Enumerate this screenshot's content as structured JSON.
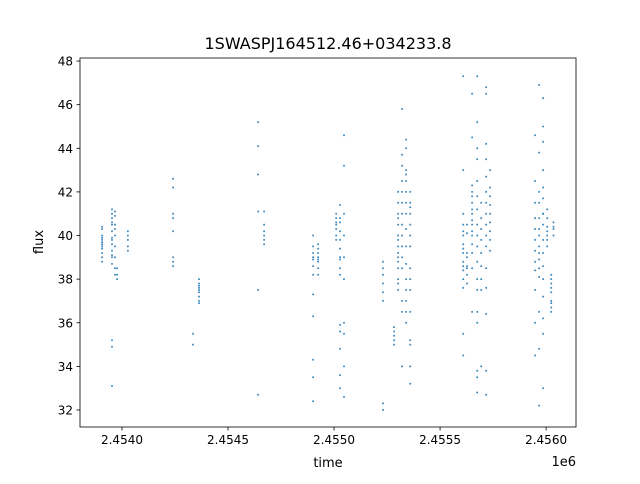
{
  "chart_data": {
    "type": "scatter",
    "title": "1SWASPJ164512.46+034233.8",
    "xlabel": "time",
    "ylabel": "flux",
    "x_offset_label": "1e6",
    "xlim": [
      2453802,
      2456141
    ],
    "ylim": [
      31.22,
      48.14
    ],
    "xticks": [
      2454000,
      2454500,
      2455000,
      2455500,
      2456000
    ],
    "xtick_labels": [
      "2.4540",
      "2.4545",
      "2.4550",
      "2.4555",
      "2.4560"
    ],
    "yticks": [
      32,
      34,
      36,
      38,
      40,
      42,
      44,
      46,
      48
    ],
    "ytick_labels": [
      "32",
      "34",
      "36",
      "38",
      "40",
      "42",
      "44",
      "46",
      "48"
    ],
    "grid": false,
    "color": "#1f77b4",
    "columns": [
      {
        "x": 2453906,
        "y": [
          40.3,
          40.0,
          39.8,
          39.6,
          39.4,
          39.2,
          39.0,
          39.9,
          40.4,
          39.7,
          39.5,
          38.8
        ]
      },
      {
        "x": 2453953,
        "y": [
          41.0,
          40.8,
          40.5,
          40.2,
          39.9,
          39.6,
          39.3,
          39.0,
          38.7,
          40.6,
          41.2,
          39.8,
          39.1,
          35.2,
          34.9,
          33.1
        ]
      },
      {
        "x": 2453967,
        "y": [
          40.9,
          40.5,
          40.0,
          39.5,
          39.0,
          38.5,
          38.2,
          41.1,
          40.3
        ]
      },
      {
        "x": 2453977,
        "y": [
          38.5,
          38.2,
          38.0
        ]
      },
      {
        "x": 2454028,
        "y": [
          40.2,
          40.0,
          39.8,
          39.5,
          39.3
        ]
      },
      {
        "x": 2454241,
        "y": [
          42.6,
          42.2,
          41.0,
          40.8,
          40.2,
          39.0,
          38.8,
          38.6
        ]
      },
      {
        "x": 2454335,
        "y": [
          35.5,
          35.0
        ]
      },
      {
        "x": 2454363,
        "y": [
          38.0,
          37.8,
          37.6,
          37.4,
          37.2,
          37.0,
          36.9,
          37.7,
          37.5
        ]
      },
      {
        "x": 2454642,
        "y": [
          45.2,
          44.1,
          42.8,
          41.1,
          37.5,
          32.7
        ]
      },
      {
        "x": 2454670,
        "y": [
          40.5,
          40.2,
          40.0,
          39.8,
          39.6,
          41.1
        ]
      },
      {
        "x": 2454901,
        "y": [
          40.0,
          39.5,
          39.0,
          38.6,
          38.2,
          37.3,
          36.3,
          34.3,
          33.5,
          32.4,
          38.9,
          39.2
        ]
      },
      {
        "x": 2454925,
        "y": [
          39.6,
          39.2,
          38.9,
          38.5,
          38.2,
          38.8,
          39.4,
          39.0
        ]
      },
      {
        "x": 2455010,
        "y": [
          40.8,
          40.6,
          40.3,
          40.0,
          39.8,
          41.0,
          40.5
        ]
      },
      {
        "x": 2455028,
        "y": [
          41.4,
          40.8,
          40.2,
          39.8,
          39.4,
          38.9,
          38.5,
          38.2,
          40.6,
          39.0,
          35.9,
          35.6,
          34.8,
          33.6,
          33.0
        ]
      },
      {
        "x": 2455047,
        "y": [
          44.6,
          43.2,
          41.0,
          40.0,
          39.0,
          38.0,
          36.0,
          32.6,
          35.5,
          34.0
        ]
      },
      {
        "x": 2455231,
        "y": [
          38.8,
          38.5,
          38.2,
          37.8,
          37.4,
          37.0,
          32.3,
          32.0
        ]
      },
      {
        "x": 2455283,
        "y": [
          35.8,
          35.4,
          35.0,
          35.6,
          35.2
        ]
      },
      {
        "x": 2455302,
        "y": [
          41.0,
          40.5,
          40.0,
          39.5,
          39.0,
          38.5,
          38.0,
          37.5,
          41.5,
          42.0,
          40.8,
          39.8,
          39.2,
          38.8,
          37.8
        ]
      },
      {
        "x": 2455321,
        "y": [
          42.5,
          42.0,
          41.5,
          41.0,
          40.5,
          40.0,
          39.5,
          39.0,
          38.5,
          37.0,
          36.5,
          43.2,
          45.8,
          43.7,
          34.0
        ]
      },
      {
        "x": 2455340,
        "y": [
          43.0,
          42.5,
          42.0,
          41.5,
          41.0,
          40.3,
          39.5,
          38.7,
          38.0,
          37.5,
          37.0,
          36.5,
          36.0,
          42.8,
          44.0,
          44.4
        ]
      },
      {
        "x": 2455359,
        "y": [
          42.0,
          41.5,
          41.0,
          40.5,
          40.0,
          39.5,
          38.5,
          38.0,
          37.5,
          36.5,
          35.2,
          34.0,
          33.2,
          35.0,
          41.3
        ]
      },
      {
        "x": 2455609,
        "y": [
          40.5,
          40.2,
          40.0,
          39.6,
          39.2,
          38.8,
          38.4,
          38.0,
          37.6,
          41.0,
          38.6,
          39.4,
          47.3,
          43.0,
          35.5,
          34.5
        ]
      },
      {
        "x": 2455627,
        "y": [
          39.0,
          38.5,
          38.2,
          37.8,
          38.6,
          39.2,
          40.1,
          40.5
        ]
      },
      {
        "x": 2455651,
        "y": [
          41.5,
          41.0,
          40.5,
          40.0,
          39.6,
          39.2,
          38.5,
          42.0,
          41.8,
          40.7,
          41.2,
          40.2,
          42.3,
          46.5,
          44.5,
          36.5
        ]
      },
      {
        "x": 2455675,
        "y": [
          43.5,
          45.2,
          44.0,
          42.5,
          41.8,
          41.2,
          40.5,
          40.0,
          39.5,
          38.8,
          38.0,
          37.5,
          36.5,
          33.8,
          33.5,
          32.8,
          36.0,
          47.3
        ]
      },
      {
        "x": 2455694,
        "y": [
          40.3,
          39.8,
          39.2,
          38.6,
          38.0,
          37.5,
          40.8,
          41.5,
          34.0
        ]
      },
      {
        "x": 2455717,
        "y": [
          43.5,
          42.7,
          42.0,
          41.5,
          41.0,
          40.5,
          40.0,
          39.5,
          38.5,
          37.6,
          36.4,
          32.7,
          33.8,
          46.8,
          46.5,
          44.2
        ]
      },
      {
        "x": 2455736,
        "y": [
          42.2,
          41.8,
          41.4,
          41.0,
          40.6,
          40.2,
          39.8,
          39.3,
          43.0
        ]
      },
      {
        "x": 2455948,
        "y": [
          41.5,
          40.8,
          40.3,
          39.8,
          39.3,
          38.8,
          38.4,
          37.5,
          36.0,
          34.5,
          44.6,
          42.5
        ]
      },
      {
        "x": 2455967,
        "y": [
          42.0,
          41.5,
          40.8,
          40.3,
          40.0,
          39.5,
          38.9,
          38.5,
          38.1,
          39.2,
          36.5,
          34.8,
          32.2,
          46.9,
          43.8
        ]
      },
      {
        "x": 2455986,
        "y": [
          43.0,
          42.2,
          41.7,
          41.0,
          40.5,
          39.8,
          39.2,
          38.6,
          38.0,
          37.2,
          36.2,
          35.5,
          33.0,
          46.3,
          45.0,
          44.3,
          41.0
        ]
      },
      {
        "x": 2456005,
        "y": [
          40.8,
          40.4,
          40.0,
          39.8,
          39.5,
          41.2,
          40.2
        ]
      },
      {
        "x": 2456024,
        "y": [
          38.2,
          37.8,
          37.4,
          37.0,
          36.7,
          36.5,
          37.6,
          38.0,
          36.9
        ]
      },
      {
        "x": 2456035,
        "y": [
          40.6,
          40.3,
          40.0,
          40.4
        ]
      }
    ]
  }
}
